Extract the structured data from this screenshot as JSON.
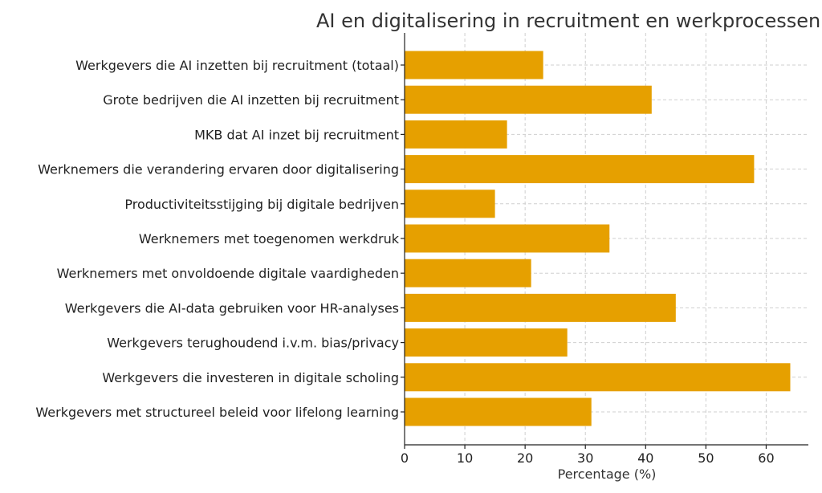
{
  "chart_data": {
    "type": "bar",
    "orientation": "horizontal",
    "title": "AI en digitalisering in recruitment en werkprocessen (N",
    "xlabel": "Percentage (%)",
    "ylabel": "",
    "xlim": [
      0,
      67
    ],
    "xticks": [
      0,
      10,
      20,
      30,
      40,
      50,
      60
    ],
    "grid": true,
    "bar_color": "#E6A000",
    "categories": [
      "Werkgevers die AI inzetten bij recruitment (totaal)",
      "Grote bedrijven die AI inzetten bij recruitment",
      "MKB dat AI inzet bij recruitment",
      "Werknemers die verandering ervaren door digitalisering",
      "Productiviteitsstijging bij digitale bedrijven",
      "Werknemers met toegenomen werkdruk",
      "Werknemers met onvoldoende digitale vaardigheden",
      "Werkgevers die AI-data gebruiken voor HR-analyses",
      "Werkgevers terughoudend i.v.m. bias/privacy",
      "Werkgevers die investeren in digitale scholing",
      "Werkgevers met structureel beleid voor lifelong learning"
    ],
    "values": [
      23,
      41,
      17,
      58,
      15,
      34,
      21,
      45,
      27,
      64,
      31
    ]
  }
}
